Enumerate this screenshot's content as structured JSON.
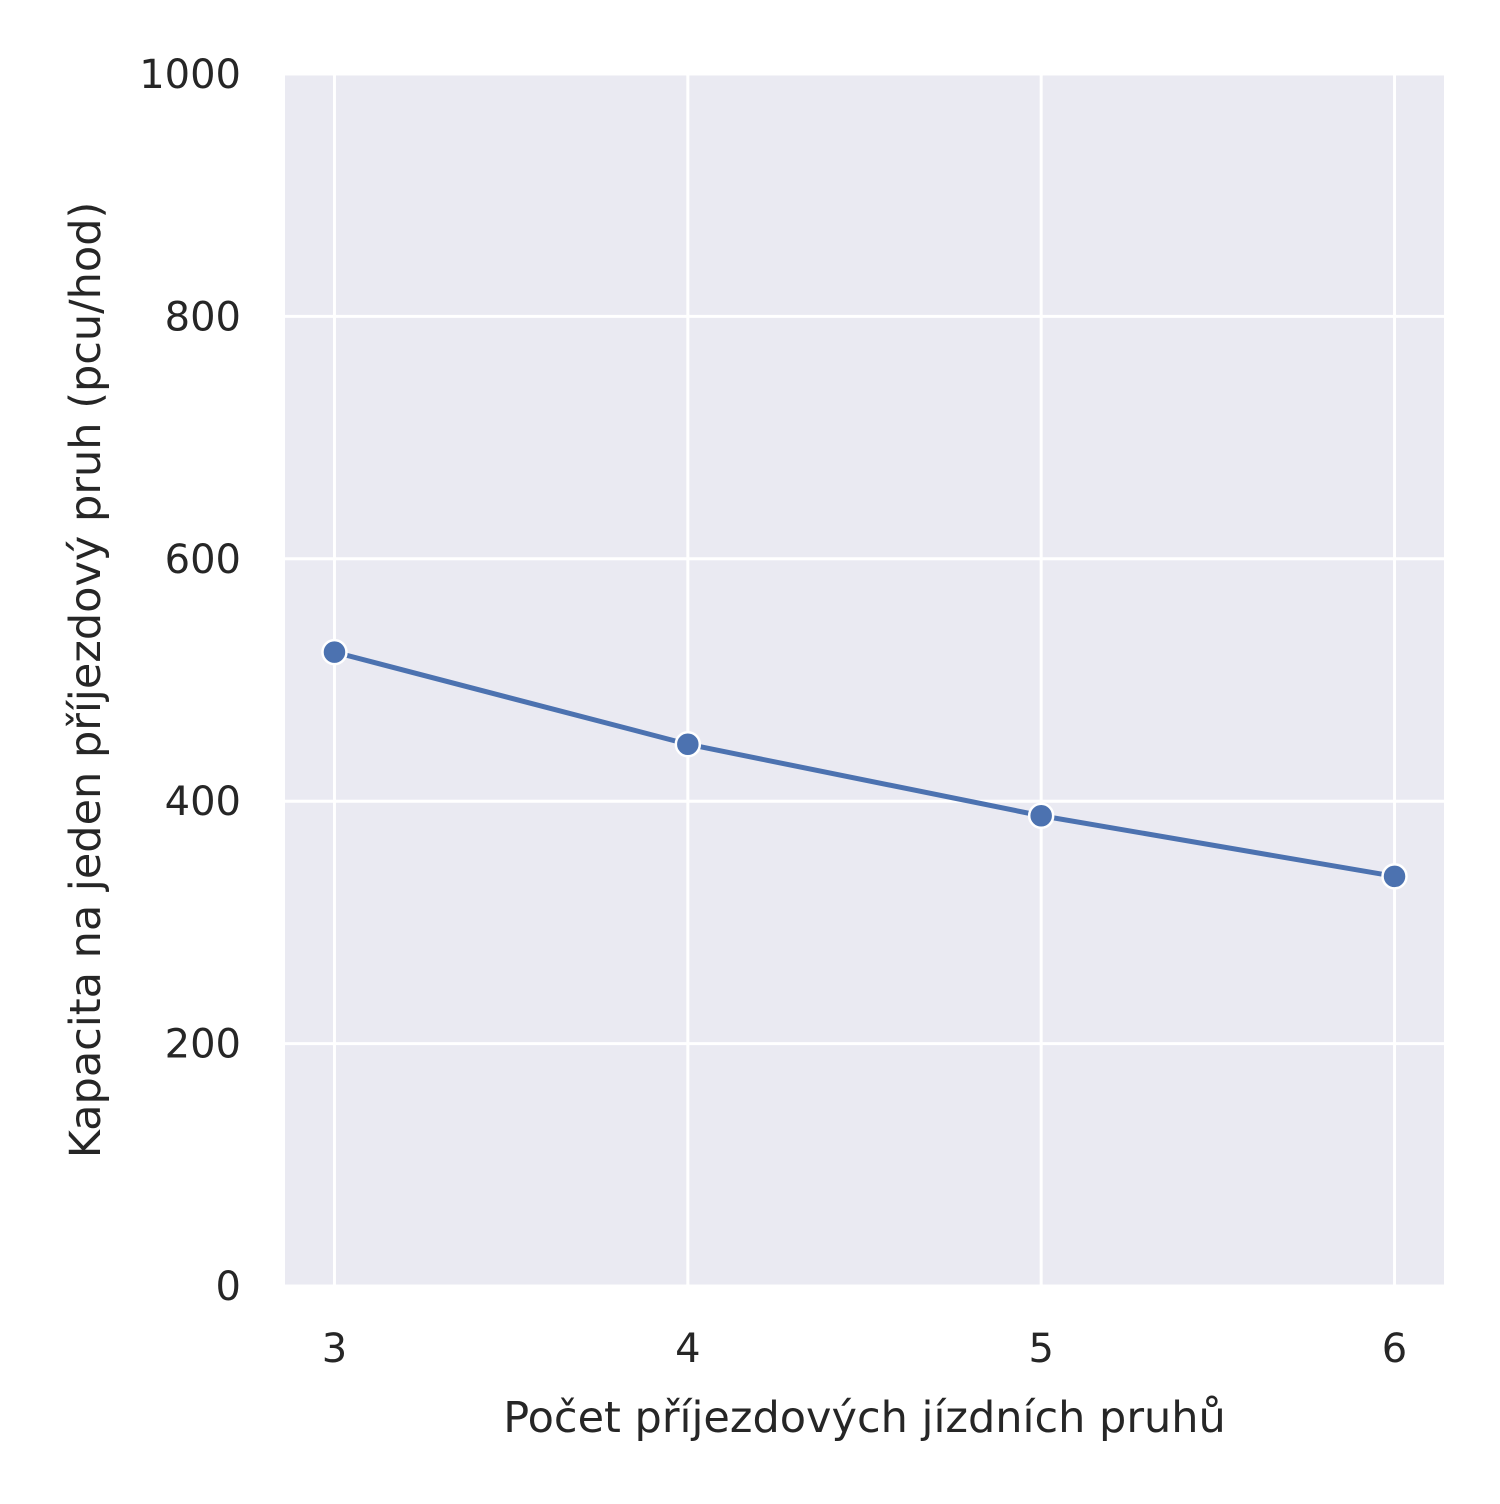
{
  "chart_data": {
    "type": "line",
    "title": "",
    "xlabel": "Počet příjezdových jízdních pruhů",
    "ylabel": "Kapacita na jeden příjezdový pruh (pcu/hod)",
    "x": [
      3,
      4,
      5,
      6
    ],
    "x_tick_labels": [
      "3",
      "4",
      "5",
      "6"
    ],
    "y_ticks": [
      0,
      200,
      400,
      600,
      800,
      1000
    ],
    "y_tick_labels": [
      "0",
      "200",
      "400",
      "600",
      "800",
      "1000"
    ],
    "xlim": [
      2.86,
      6.14
    ],
    "ylim": [
      0,
      1000
    ],
    "grid": true,
    "legend": "none",
    "series": [
      {
        "values": [
          523,
          447,
          388,
          338
        ],
        "color": "#4c72b0",
        "marker": "circle"
      }
    ],
    "background_color": "#eaeaf2",
    "grid_color": "#ffffff"
  }
}
